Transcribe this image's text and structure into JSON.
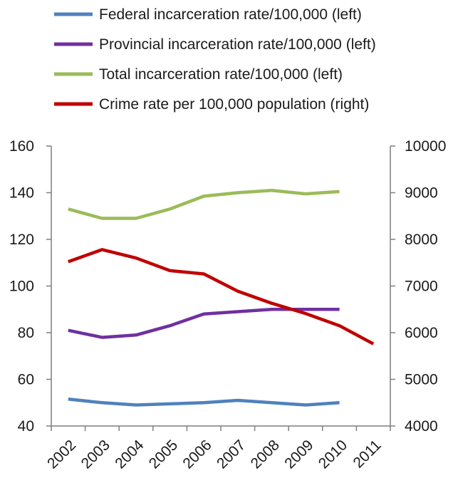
{
  "chart_data": {
    "type": "line",
    "title": "",
    "categories": [
      "2002",
      "2003",
      "2004",
      "2005",
      "2006",
      "2007",
      "2008",
      "2009",
      "2010",
      "2011"
    ],
    "left_axis": {
      "ylim": [
        40,
        160
      ],
      "ticks": [
        "40",
        "60",
        "80",
        "100",
        "120",
        "140",
        "160"
      ]
    },
    "right_axis": {
      "ylim": [
        4000,
        10000
      ],
      "ticks": [
        "4000",
        "5000",
        "6000",
        "7000",
        "8000",
        "9000",
        "10000"
      ]
    },
    "grid": false,
    "legend_position": "top",
    "series": [
      {
        "name": "Federal incarceration rate/100,000 (left)",
        "axis": "left",
        "color": "#4f81bd",
        "values": [
          51.5,
          50,
          49,
          49.5,
          50,
          51,
          50,
          49,
          50,
          null
        ]
      },
      {
        "name": "Provincial incarceration rate/100,000 (left)",
        "axis": "left",
        "color": "#7030a0",
        "values": [
          81,
          78,
          79,
          83,
          88,
          89,
          90,
          90,
          90,
          null
        ]
      },
      {
        "name": "Total incarceration rate/100,000 (left)",
        "axis": "left",
        "color": "#9bbb59",
        "values": [
          133,
          129,
          129,
          133,
          138.5,
          140,
          141,
          139.5,
          140.5,
          null
        ]
      },
      {
        "name": "Crime rate per 100,000 population (right)",
        "axis": "right",
        "color": "#c00000",
        "values": [
          7520,
          7780,
          7600,
          7330,
          7260,
          6890,
          6630,
          6410,
          6150,
          5760
        ]
      }
    ]
  }
}
